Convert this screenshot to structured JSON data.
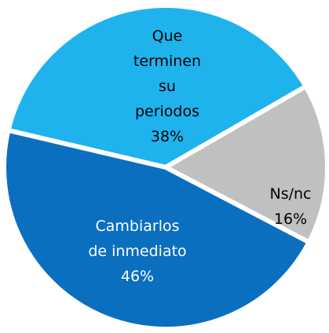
{
  "chart_data": {
    "type": "pie",
    "categories": [
      "Que terminen su periodos",
      "Ns/nc",
      "Cambiarlos de inmediato"
    ],
    "values": [
      38,
      16,
      46
    ],
    "value_labels": [
      "38%",
      "16%",
      "46%"
    ],
    "colors": [
      "#1fb3ee",
      "#c0c0c0",
      "#0b6fc0"
    ]
  }
}
